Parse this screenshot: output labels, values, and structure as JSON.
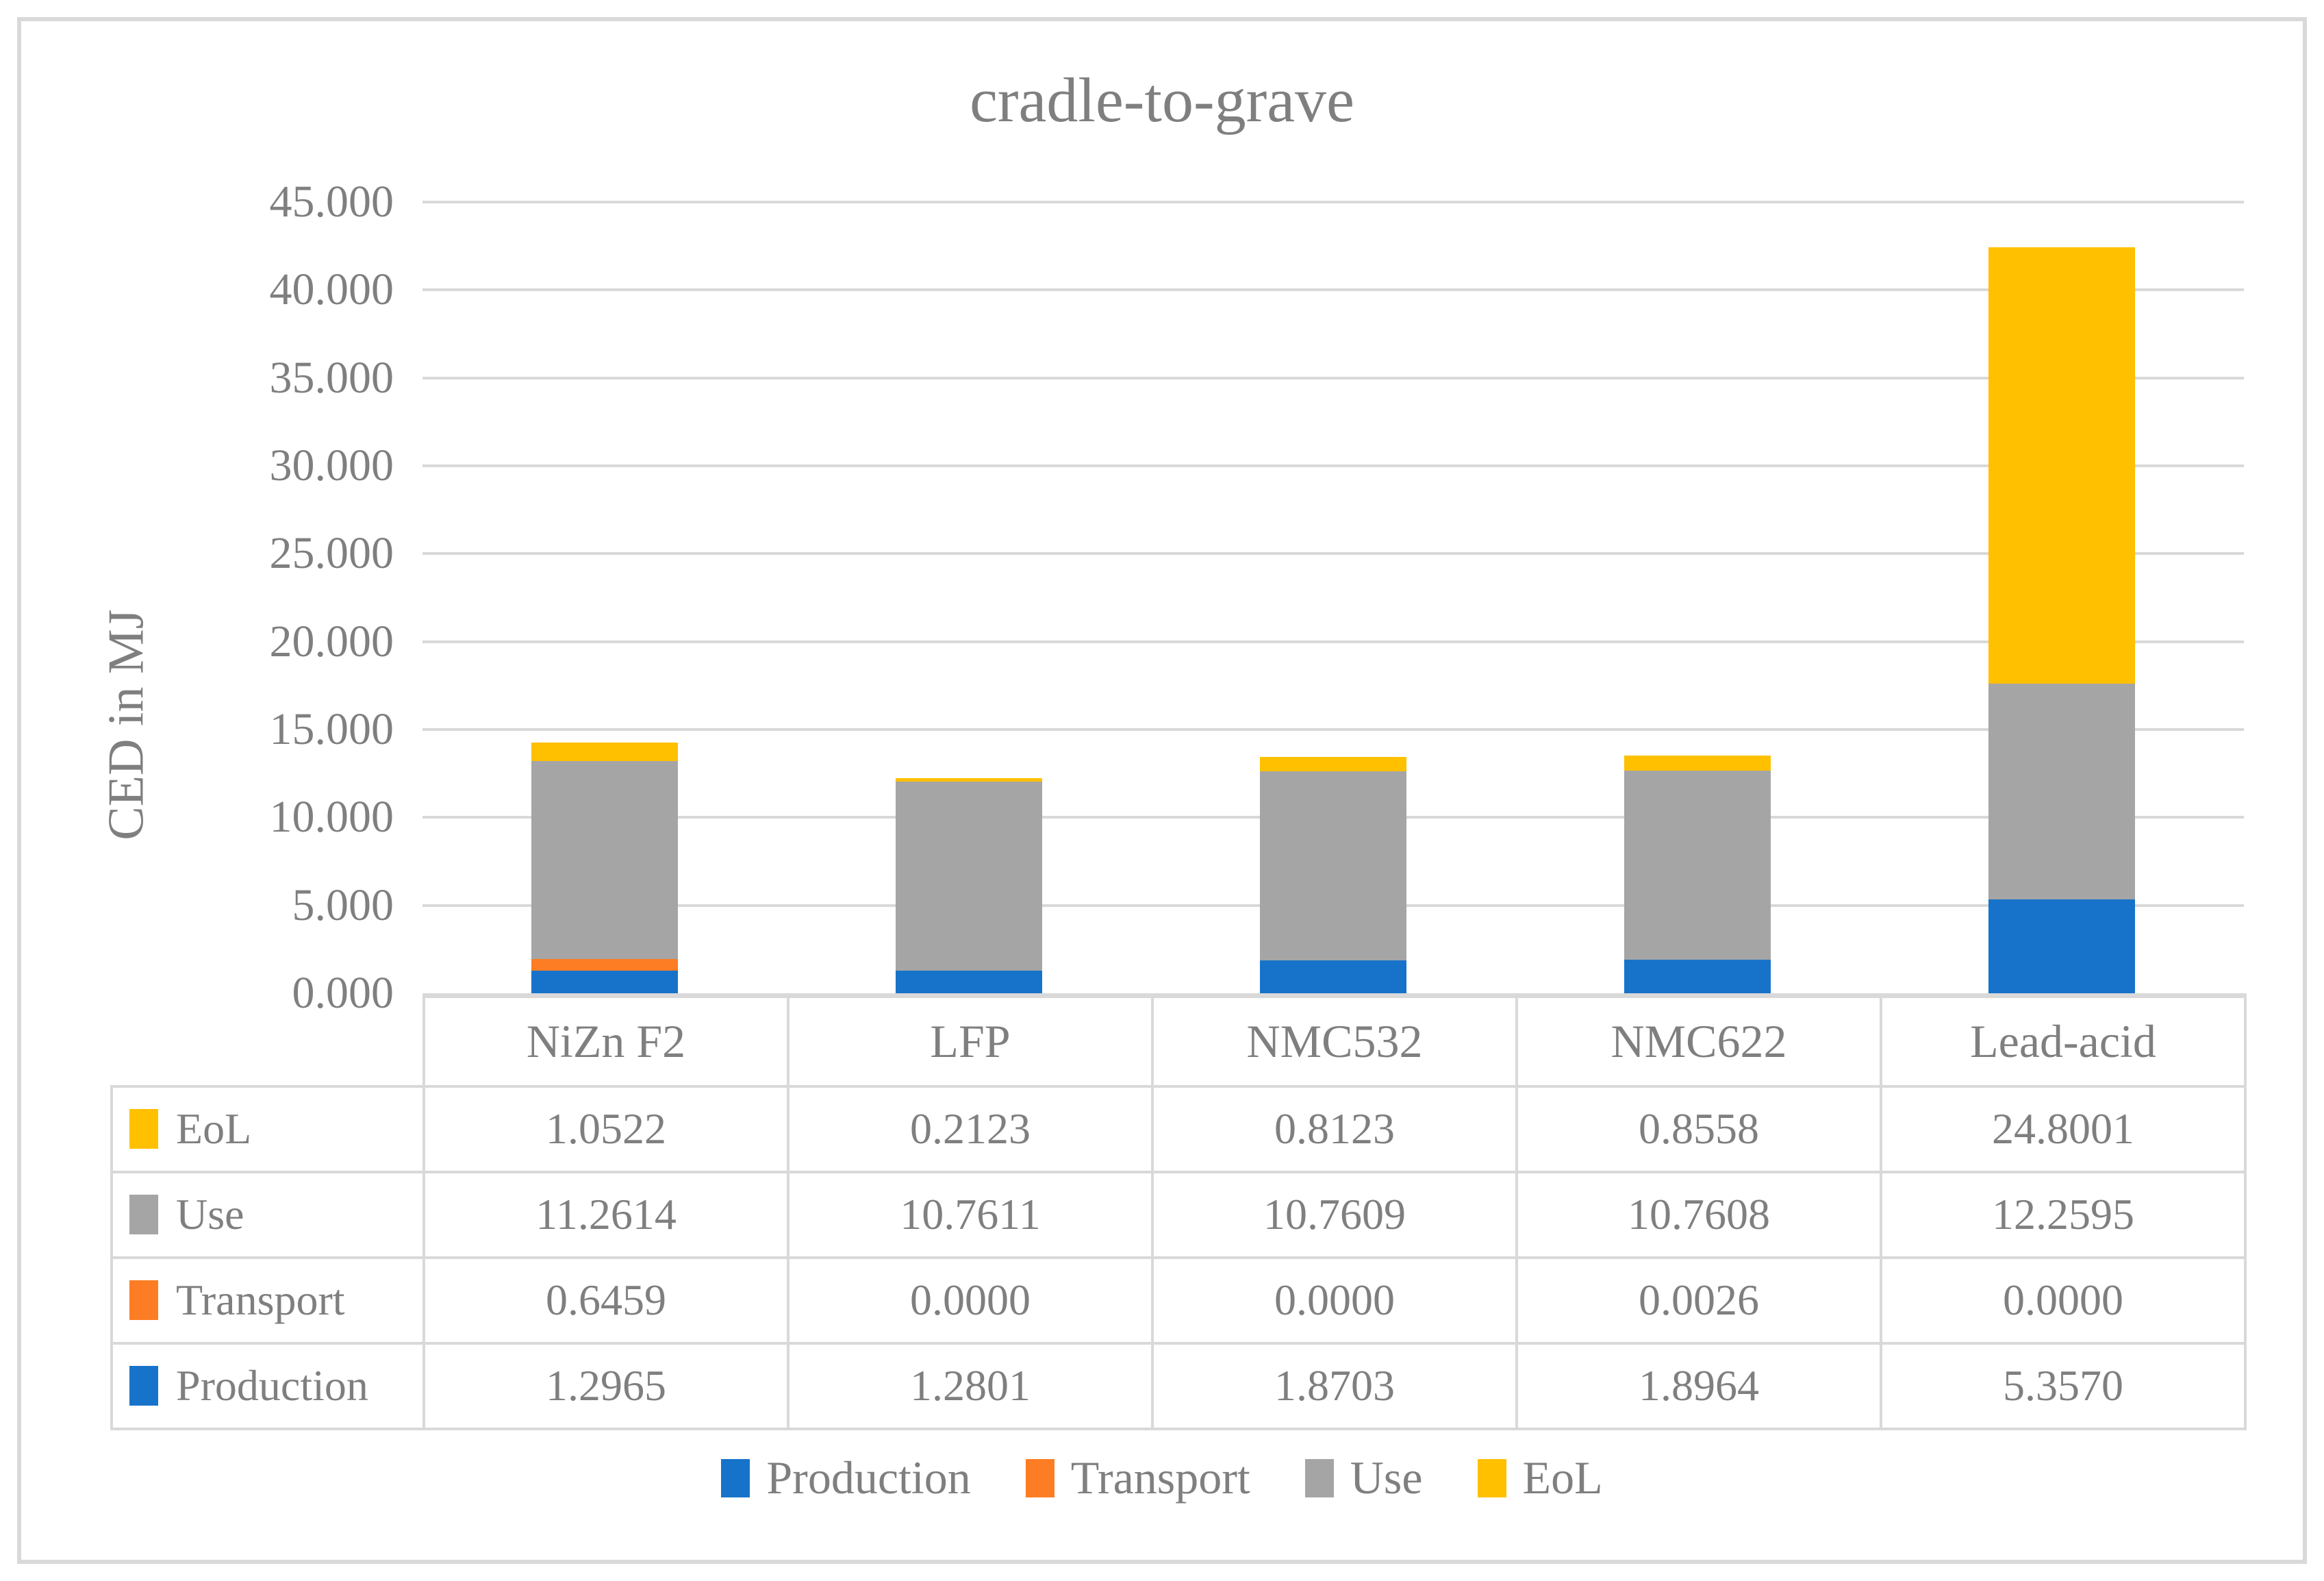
{
  "chart_data": {
    "type": "bar",
    "stacked": true,
    "title": "cradle-to-grave",
    "xlabel": "",
    "ylabel": "CED in MJ",
    "categories": [
      "NiZn F2",
      "LFP",
      "NMC532",
      "NMC622",
      "Lead-acid"
    ],
    "series": [
      {
        "name": "Production",
        "color": "#1773C9",
        "values": [
          1.2965,
          1.2801,
          1.8703,
          1.8964,
          5.357
        ]
      },
      {
        "name": "Transport",
        "color": "#FC7D23",
        "values": [
          0.6459,
          0.0,
          0.0,
          0.0026,
          0.0
        ]
      },
      {
        "name": "Use",
        "color": "#A5A5A5",
        "values": [
          11.2614,
          10.7611,
          10.7609,
          10.7608,
          12.2595
        ]
      },
      {
        "name": "EoL",
        "color": "#FFC000",
        "values": [
          1.0522,
          0.2123,
          0.8123,
          0.8558,
          24.8001
        ]
      }
    ],
    "ylim": [
      0,
      45
    ],
    "ytick_step": 5,
    "ytick_labels": [
      "0.000",
      "5.000",
      "10.000",
      "15.000",
      "20.000",
      "25.000",
      "30.000",
      "35.000",
      "40.000",
      "45.000"
    ],
    "grid": true,
    "gridline_color": "#D9D9D9",
    "text_color": "#7F7F7F",
    "legend_position": "bottom",
    "legend_items": [
      "Production",
      "Transport",
      "Use",
      "EoL"
    ],
    "data_table_row_order": [
      "EoL",
      "Use",
      "Transport",
      "Production"
    ],
    "value_decimals": 4
  }
}
